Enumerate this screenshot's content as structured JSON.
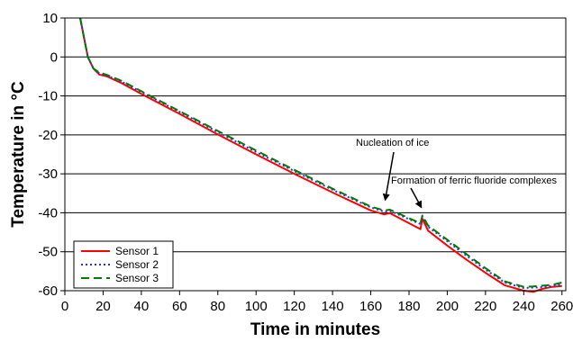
{
  "chart_data": {
    "type": "line",
    "xlabel": "Time in minutes",
    "ylabel": "Temperature in °C",
    "xlim": [
      0,
      262
    ],
    "ylim": [
      -60,
      10
    ],
    "xticks": [
      0,
      20,
      40,
      60,
      80,
      100,
      120,
      140,
      160,
      180,
      200,
      220,
      240,
      260
    ],
    "yticks": [
      10,
      0,
      -10,
      -20,
      -30,
      -40,
      -50,
      -60
    ],
    "grid": "horizontal",
    "legend_position": "bottom-left",
    "series": [
      {
        "name": "Sensor 1",
        "color": "#ff0000",
        "style": "solid",
        "x": [
          8,
          10,
          12,
          15,
          18,
          22,
          30,
          40,
          60,
          80,
          100,
          120,
          140,
          160,
          167,
          170,
          186,
          187,
          190,
          200,
          210,
          220,
          230,
          240,
          245,
          250,
          255,
          260
        ],
        "y": [
          10,
          5,
          0,
          -3,
          -4.5,
          -5,
          -6.8,
          -9.5,
          -14.6,
          -19.9,
          -25,
          -30,
          -34.8,
          -39.4,
          -40.4,
          -40.1,
          -44.2,
          -41.5,
          -44.6,
          -48.4,
          -52,
          -55.4,
          -58.6,
          -60,
          -60.3,
          -59.5,
          -59,
          -58.8
        ]
      },
      {
        "name": "Sensor 2",
        "color": "#2233ee",
        "style": "dotted",
        "x": [
          8,
          10,
          12,
          15,
          18,
          22,
          30,
          40,
          60,
          80,
          100,
          120,
          140,
          160,
          167,
          170,
          186,
          187,
          190,
          200,
          210,
          220,
          230,
          240,
          245,
          250,
          255,
          260
        ],
        "y": [
          10,
          5,
          0,
          -3,
          -4.2,
          -4.8,
          -6.4,
          -9,
          -14.1,
          -19.3,
          -24.4,
          -29.3,
          -34.1,
          -38.6,
          -39.7,
          -39.5,
          -42.9,
          -40.9,
          -43.6,
          -47.3,
          -51,
          -54.6,
          -57.9,
          -59.3,
          -59.2,
          -59.1,
          -58.8,
          -58.4
        ]
      },
      {
        "name": "Sensor 3",
        "color": "#007a00",
        "style": "dashed",
        "x": [
          8,
          10,
          12,
          15,
          18,
          22,
          30,
          40,
          60,
          80,
          100,
          120,
          140,
          160,
          167,
          170,
          186,
          187,
          190,
          200,
          210,
          220,
          230,
          240,
          245,
          250,
          255,
          260
        ],
        "y": [
          10,
          5,
          0,
          -3,
          -4,
          -4.6,
          -6.2,
          -8.8,
          -13.9,
          -19,
          -24,
          -29,
          -33.8,
          -38.4,
          -39.4,
          -39.2,
          -42.7,
          -40.7,
          -43.3,
          -46.9,
          -50.6,
          -54.2,
          -57.6,
          -59,
          -58.9,
          -58.7,
          -58.5,
          -57.9
        ]
      }
    ],
    "annotations": [
      {
        "text": "Nucleation of ice",
        "x": 168,
        "y": -40
      },
      {
        "text": "Formation of ferric fluoride complexes",
        "x": 186,
        "y": -40.5
      }
    ]
  }
}
